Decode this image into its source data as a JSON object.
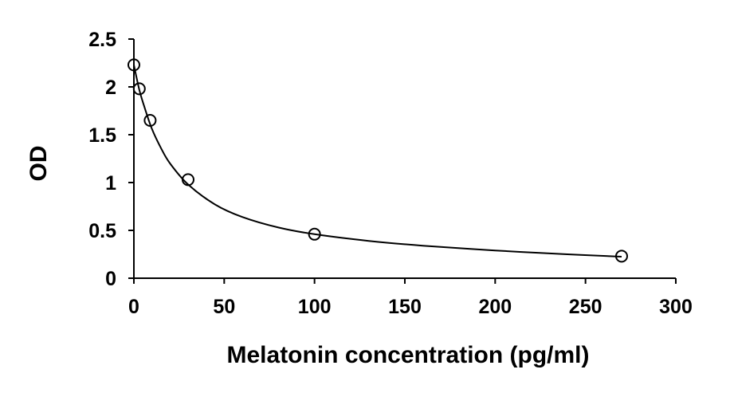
{
  "chart_data": {
    "type": "scatter",
    "title": "",
    "xlabel": "Melatonin concentration (pg/ml)",
    "ylabel": "OD",
    "xlim": [
      0,
      300
    ],
    "ylim": [
      0,
      2.5
    ],
    "x_ticks": [
      "0",
      "50",
      "100",
      "150",
      "200",
      "250",
      "300"
    ],
    "y_ticks": [
      "0",
      "0.5",
      "1",
      "1.5",
      "2",
      "2.5"
    ],
    "grid": false,
    "legend": "none",
    "series": [
      {
        "marker": "open-circle",
        "points": [
          {
            "x": 0,
            "y": 2.23
          },
          {
            "x": 3,
            "y": 1.98
          },
          {
            "x": 9,
            "y": 1.65
          },
          {
            "x": 30,
            "y": 1.03
          },
          {
            "x": 100,
            "y": 0.46
          },
          {
            "x": 270,
            "y": 0.23
          }
        ]
      }
    ],
    "fit_line": {
      "type": "smooth-curve",
      "points": [
        {
          "x": 0,
          "y": 2.23
        },
        {
          "x": 3,
          "y": 1.97
        },
        {
          "x": 6,
          "y": 1.78
        },
        {
          "x": 10,
          "y": 1.56
        },
        {
          "x": 15,
          "y": 1.36
        },
        {
          "x": 20,
          "y": 1.2
        },
        {
          "x": 30,
          "y": 0.98
        },
        {
          "x": 45,
          "y": 0.77
        },
        {
          "x": 60,
          "y": 0.64
        },
        {
          "x": 80,
          "y": 0.53
        },
        {
          "x": 100,
          "y": 0.46
        },
        {
          "x": 130,
          "y": 0.39
        },
        {
          "x": 160,
          "y": 0.34
        },
        {
          "x": 200,
          "y": 0.29
        },
        {
          "x": 240,
          "y": 0.25
        },
        {
          "x": 270,
          "y": 0.225
        }
      ]
    },
    "colors": {
      "axis": "#000000",
      "marker": "#000000",
      "line": "#000000"
    }
  }
}
